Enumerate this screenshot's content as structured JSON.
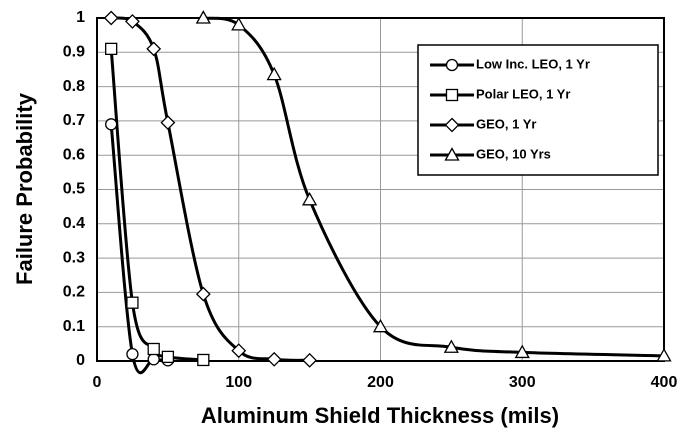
{
  "chart_data": {
    "type": "line",
    "x_label": "Aluminum Shield Thickness (mils)",
    "y_label": "Failure Probability",
    "xlim": [
      0,
      400
    ],
    "xticks": [
      0,
      100,
      200,
      300,
      400
    ],
    "ylim": [
      0,
      1
    ],
    "yticks": [
      0,
      0.1,
      0.2,
      0.3,
      0.4,
      0.5,
      0.6,
      0.7,
      0.8,
      0.9,
      1
    ],
    "grid": true,
    "legend": "upper right",
    "series": [
      {
        "name": "Low Inc. LEO, 1 Yr",
        "color": "#000000",
        "marker": "circle",
        "x": [
          10,
          25,
          40,
          50
        ],
        "values": [
          0.69,
          0.02,
          0.005,
          0.002
        ]
      },
      {
        "name": "Polar LEO, 1 Yr",
        "color": "#000000",
        "marker": "square",
        "x": [
          10,
          25,
          40,
          50,
          75
        ],
        "values": [
          0.91,
          0.17,
          0.035,
          0.012,
          0.003
        ]
      },
      {
        "name": "GEO, 1 Yr",
        "color": "#000000",
        "marker": "diamond",
        "x": [
          10,
          25,
          40,
          50,
          75,
          100,
          125,
          150
        ],
        "values": [
          1,
          0.99,
          0.91,
          0.695,
          0.195,
          0.03,
          0.005,
          0.002
        ]
      },
      {
        "name": "GEO, 10 Yrs",
        "color": "#000000",
        "marker": "triangle",
        "x": [
          75,
          100,
          125,
          150,
          200,
          250,
          300,
          400
        ],
        "values": [
          1,
          0.98,
          0.835,
          0.47,
          0.1,
          0.04,
          0.025,
          0.015
        ]
      }
    ]
  }
}
